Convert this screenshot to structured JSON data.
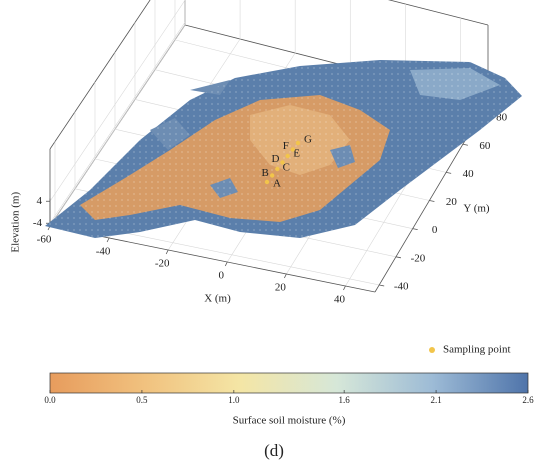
{
  "chart_data": {
    "type": "surface3d",
    "xlabel": "X (m)",
    "ylabel": "Y (m)",
    "zlabel": "Elevation (m)",
    "xlim": [
      -60,
      50
    ],
    "ylim": [
      -45,
      90
    ],
    "zlim": [
      -5,
      5
    ],
    "xticks": [
      -60,
      -40,
      -20,
      0,
      20,
      40
    ],
    "yticks": [
      -40,
      -20,
      0,
      20,
      40,
      60,
      80
    ],
    "zticks": [
      -4,
      4
    ],
    "grid": true,
    "sampling_points": {
      "name": "Sampling point",
      "color": "#f2c54b",
      "labels": [
        "A",
        "B",
        "C",
        "D",
        "E",
        "F",
        "G"
      ]
    },
    "colorbar": {
      "label": "Surface soil moisture (%)",
      "lim": [
        0,
        2.6
      ],
      "ticks": [
        {
          "value": 0,
          "label": "0.0"
        },
        0.5,
        {
          "value": 1,
          "label": "1.0"
        },
        1.6,
        2.1,
        2.6
      ],
      "colors": [
        "#e79c5d",
        "#f1c27f",
        "#f4e6a6",
        "#d6e7d8",
        "#9dbbd6",
        "#4f74aa"
      ]
    },
    "panel_label": "(d)"
  }
}
